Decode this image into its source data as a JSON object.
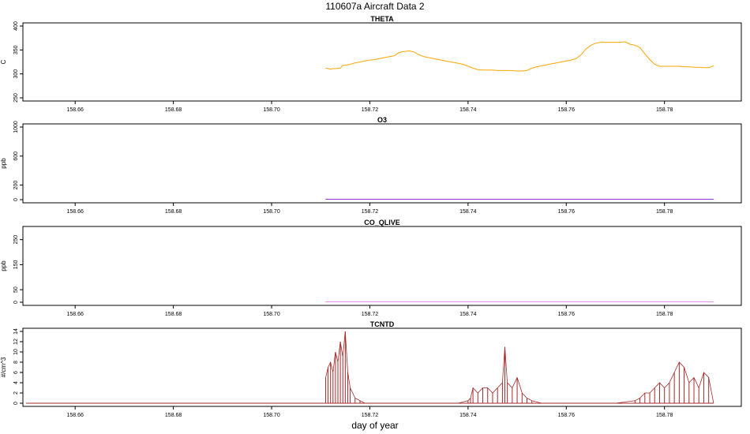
{
  "figure": {
    "title": "110607a   Aircraft Data 2",
    "xlabel": "day of year"
  },
  "chart_data": [
    {
      "type": "line",
      "title": "THETA",
      "ylabel": "C",
      "xlim": [
        158.65,
        158.795
      ],
      "ylim": [
        250,
        400
      ],
      "xticks": [
        158.66,
        158.68,
        158.7,
        158.72,
        158.74,
        158.76,
        158.78
      ],
      "xtick_labels": [
        "158.66",
        "158.68",
        "158.70",
        "158.72",
        "158.74",
        "158.76",
        "158.78"
      ],
      "yticks": [
        250,
        300,
        350,
        400
      ],
      "ytick_labels": [
        "250",
        "300",
        "350",
        "400"
      ],
      "color": "#FFA500",
      "series": [
        {
          "x": [
            158.711,
            158.712,
            158.7125,
            158.713,
            158.714,
            158.7145,
            158.715,
            158.716,
            158.717,
            158.718,
            158.719,
            158.72,
            158.721,
            158.722,
            158.723,
            158.724,
            158.725,
            158.726,
            158.727,
            158.728,
            158.729,
            158.73,
            158.731,
            158.732,
            158.733,
            158.734,
            158.735,
            158.736,
            158.737,
            158.738,
            158.739,
            158.74,
            158.741,
            158.742,
            158.743,
            158.744,
            158.745,
            158.746,
            158.747,
            158.748,
            158.749,
            158.75,
            158.751,
            158.752,
            158.753,
            158.754,
            158.755,
            158.756,
            158.757,
            158.758,
            158.759,
            158.76,
            158.761,
            158.762,
            158.763,
            158.764,
            158.765,
            158.766,
            158.767,
            158.768,
            158.769,
            158.77,
            158.771,
            158.772,
            158.773,
            158.774,
            158.775,
            158.776,
            158.777,
            158.778,
            158.779,
            158.78,
            158.781,
            158.782,
            158.783,
            158.784,
            158.785,
            158.786,
            158.787,
            158.788,
            158.789,
            158.79
          ],
          "y": [
            312,
            310,
            311,
            311,
            312,
            318,
            318,
            320,
            323,
            325,
            327,
            329,
            330,
            332,
            334,
            336,
            338,
            345,
            347,
            348,
            346,
            340,
            336,
            334,
            332,
            330,
            328,
            326,
            324,
            322,
            320,
            316,
            312,
            309,
            308,
            308,
            308,
            307,
            307,
            307,
            307,
            306,
            306,
            307,
            312,
            315,
            317,
            319,
            321,
            323,
            325,
            327,
            329,
            332,
            340,
            352,
            360,
            364,
            366,
            366,
            366,
            366,
            366,
            367,
            362,
            360,
            355,
            342,
            330,
            320,
            316,
            316,
            316,
            316,
            316,
            315,
            315,
            314,
            314,
            313,
            313,
            317
          ]
        }
      ]
    },
    {
      "type": "line",
      "title": "O3",
      "ylabel": "ppb",
      "xlim": [
        158.65,
        158.795
      ],
      "ylim": [
        0,
        1000
      ],
      "xticks": [
        158.66,
        158.68,
        158.7,
        158.72,
        158.74,
        158.76,
        158.78
      ],
      "xtick_labels": [
        "158.66",
        "158.68",
        "158.70",
        "158.72",
        "158.74",
        "158.76",
        "158.78"
      ],
      "yticks": [
        0,
        200,
        600,
        1000
      ],
      "ytick_labels": [
        "0",
        "200",
        "600",
        "1000"
      ],
      "color": "#9932CC",
      "series": [
        {
          "x": [
            158.711,
            158.79
          ],
          "y": [
            5,
            5
          ]
        }
      ]
    },
    {
      "type": "line",
      "title": "CO_QLIVE",
      "ylabel": "ppb",
      "xlim": [
        158.65,
        158.795
      ],
      "ylim": [
        0,
        290
      ],
      "xticks": [
        158.66,
        158.68,
        158.7,
        158.72,
        158.74,
        158.76,
        158.78
      ],
      "xtick_labels": [
        "158.66",
        "158.68",
        "158.70",
        "158.72",
        "158.74",
        "158.76",
        "158.78"
      ],
      "yticks": [
        0,
        50,
        150,
        250
      ],
      "ytick_labels": [
        "0",
        "50",
        "150",
        "250"
      ],
      "color": "#EE82EE",
      "series": [
        {
          "x": [
            158.711,
            158.79
          ],
          "y": [
            2,
            2
          ]
        }
      ]
    },
    {
      "type": "line",
      "title": "TCNTD",
      "ylabel": "#/cm^3",
      "xlim": [
        158.65,
        158.795
      ],
      "ylim": [
        0,
        14
      ],
      "xticks": [
        158.66,
        158.68,
        158.7,
        158.72,
        158.74,
        158.76,
        158.78
      ],
      "xtick_labels": [
        "158.66",
        "158.68",
        "158.70",
        "158.72",
        "158.74",
        "158.76",
        "158.78"
      ],
      "yticks": [
        0,
        2,
        4,
        6,
        8,
        10,
        12,
        14
      ],
      "ytick_labels": [
        "0",
        "2",
        "4",
        "6",
        "8",
        "10",
        "12",
        "14"
      ],
      "color": "#A52A2A",
      "series": [
        {
          "x": [
            158.711,
            158.7115,
            158.712,
            158.7125,
            158.713,
            158.7135,
            158.714,
            158.7145,
            158.715,
            158.7155,
            158.716,
            158.717,
            158.718,
            158.719,
            158.72,
            158.725,
            158.73,
            158.735,
            158.738,
            158.74,
            158.7405,
            158.741,
            158.742,
            158.743,
            158.744,
            158.745,
            158.746,
            158.747,
            158.7475,
            158.748,
            158.749,
            158.75,
            158.751,
            158.752,
            158.753,
            158.755,
            158.76,
            158.765,
            158.77,
            158.774,
            158.775,
            158.776,
            158.777,
            158.778,
            158.779,
            158.78,
            158.781,
            158.782,
            158.783,
            158.784,
            158.785,
            158.786,
            158.787,
            158.788,
            158.789,
            158.79
          ],
          "y": [
            5,
            7,
            8,
            6,
            10,
            8,
            12,
            9,
            14,
            6,
            3,
            1,
            0.5,
            0,
            0,
            0,
            0,
            0,
            0,
            0.5,
            1,
            3,
            2,
            3,
            3,
            2,
            3,
            4,
            11,
            4,
            3,
            5,
            2,
            1,
            0.5,
            0,
            0,
            0,
            0,
            0.5,
            1,
            2,
            2,
            3,
            4,
            3,
            4,
            6,
            8,
            7,
            4,
            5,
            3,
            6,
            5,
            0
          ]
        }
      ]
    }
  ]
}
